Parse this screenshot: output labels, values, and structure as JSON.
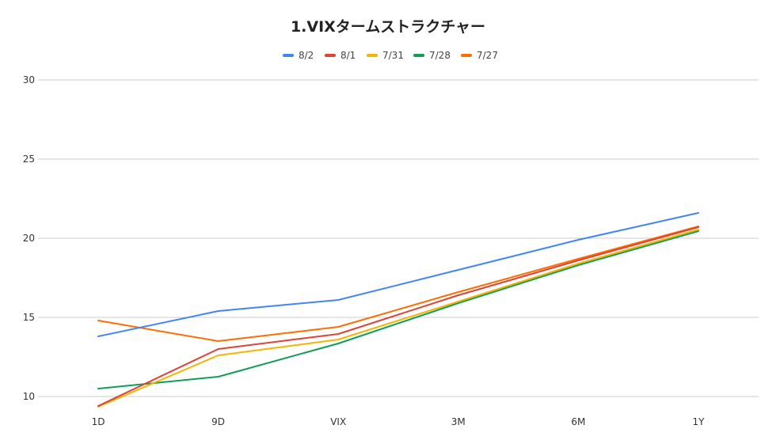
{
  "chart_data": {
    "type": "line",
    "title": "1.VIXタームストラクチャー",
    "xlabel": "",
    "ylabel": "",
    "categories": [
      "1D",
      "9D",
      "VIX",
      "3M",
      "6M",
      "1Y"
    ],
    "ylim": [
      10,
      30
    ],
    "yticks": [
      10,
      15,
      20,
      25,
      30
    ],
    "grid": true,
    "legend_position": "top",
    "series": [
      {
        "name": "8/2",
        "color": "#4285F4",
        "values": [
          13.8,
          15.4,
          16.1,
          18.0,
          19.9,
          21.6
        ]
      },
      {
        "name": "8/1",
        "color": "#DB4437",
        "values": [
          9.4,
          13.0,
          13.95,
          16.4,
          18.6,
          20.7
        ]
      },
      {
        "name": "7/31",
        "color": "#F4B400",
        "values": [
          9.35,
          12.6,
          13.6,
          16.0,
          18.4,
          20.55
        ]
      },
      {
        "name": "7/28",
        "color": "#0F9D58",
        "values": [
          10.5,
          11.25,
          13.35,
          15.9,
          18.3,
          20.45
        ]
      },
      {
        "name": "7/27",
        "color": "#FF6D01",
        "values": [
          14.8,
          13.5,
          14.4,
          16.6,
          18.7,
          20.75
        ]
      }
    ]
  }
}
